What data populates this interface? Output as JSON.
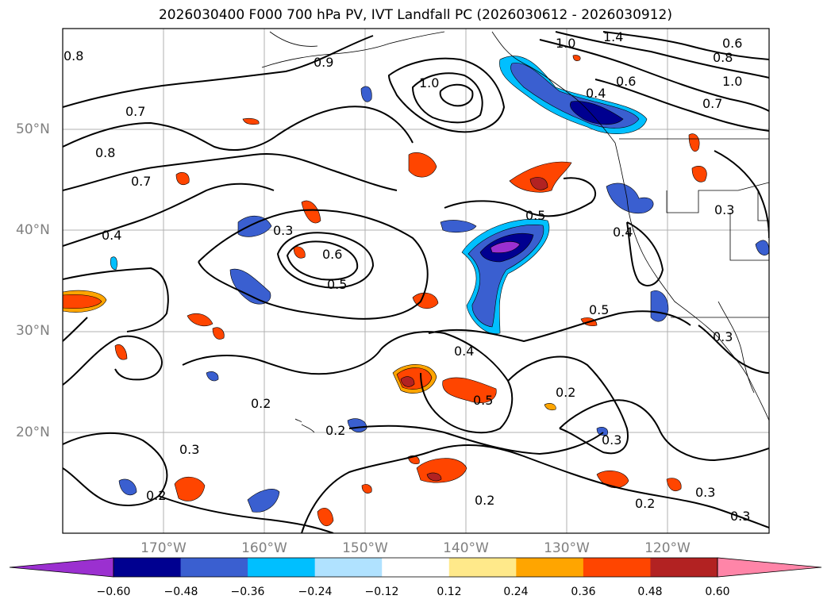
{
  "title": "2026030400 F000 700 hPa PV, IVT Landfall PC (2026030612 - 2026030912)",
  "lon_labels": [
    "170°W",
    "160°W",
    "150°W",
    "140°W",
    "130°W",
    "120°W"
  ],
  "lat_labels": [
    "50°N",
    "40°N",
    "30°N",
    "20°N"
  ],
  "colorbar": {
    "ticks": [
      "−0.60",
      "−0.48",
      "−0.36",
      "−0.24",
      "−0.12",
      "0.12",
      "0.24",
      "0.36",
      "0.48",
      "0.60"
    ],
    "colors": [
      "#9b30d0",
      "#000090",
      "#3a5fd0",
      "#00bfff",
      "#b0e2ff",
      "#ffffff",
      "#ffe98a",
      "#ffa500",
      "#ff4500",
      "#b22222",
      "#ff85a8"
    ]
  },
  "contour_labels": [
    {
      "text": "0.8"
    },
    {
      "text": "0.9"
    },
    {
      "text": "1.0"
    },
    {
      "text": "1.4"
    },
    {
      "text": "0.6"
    },
    {
      "text": "0.8"
    },
    {
      "text": "1.0"
    },
    {
      "text": "0.6"
    },
    {
      "text": "0.4"
    },
    {
      "text": "0.7"
    },
    {
      "text": "1.0"
    },
    {
      "text": "0.7"
    },
    {
      "text": "0.8"
    },
    {
      "text": "0.7"
    },
    {
      "text": "0.4"
    },
    {
      "text": "0.3"
    },
    {
      "text": "0.6"
    },
    {
      "text": "0.5"
    },
    {
      "text": "0.5"
    },
    {
      "text": "0.4"
    },
    {
      "text": "0.5"
    },
    {
      "text": "0.4"
    },
    {
      "text": "0.5"
    },
    {
      "text": "0.2"
    },
    {
      "text": "0.3"
    },
    {
      "text": "0.2"
    },
    {
      "text": "0.2"
    },
    {
      "text": "0.3"
    },
    {
      "text": "0.2"
    },
    {
      "text": "0.2"
    },
    {
      "text": "0.3"
    },
    {
      "text": "0.2"
    },
    {
      "text": "0.3"
    },
    {
      "text": "0.3"
    },
    {
      "text": "0.3"
    }
  ]
}
